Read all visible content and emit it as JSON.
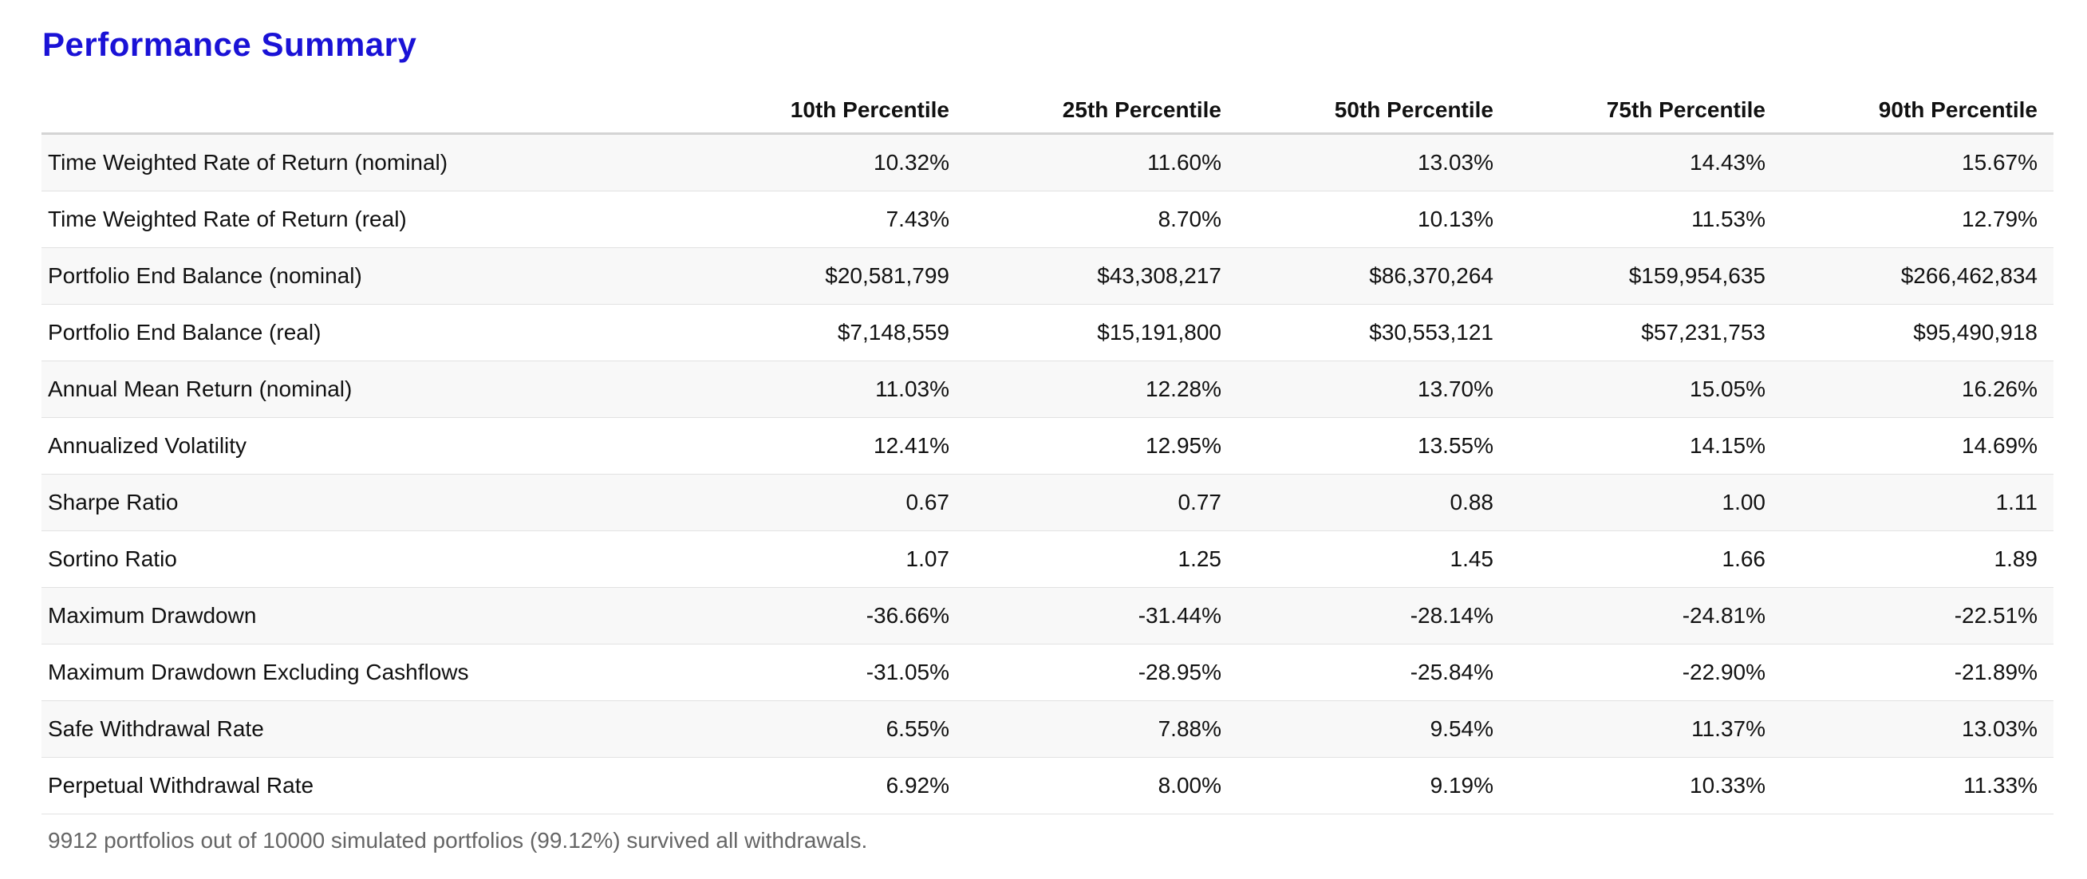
{
  "title": "Performance Summary",
  "table": {
    "columns": [
      "10th Percentile",
      "25th Percentile",
      "50th Percentile",
      "75th Percentile",
      "90th Percentile"
    ],
    "rows": [
      [
        "Time Weighted Rate of Return (nominal)",
        "10.32%",
        "11.60%",
        "13.03%",
        "14.43%",
        "15.67%"
      ],
      [
        "Time Weighted Rate of Return (real)",
        "7.43%",
        "8.70%",
        "10.13%",
        "11.53%",
        "12.79%"
      ],
      [
        "Portfolio End Balance (nominal)",
        "$20,581,799",
        "$43,308,217",
        "$86,370,264",
        "$159,954,635",
        "$266,462,834"
      ],
      [
        "Portfolio End Balance (real)",
        "$7,148,559",
        "$15,191,800",
        "$30,553,121",
        "$57,231,753",
        "$95,490,918"
      ],
      [
        "Annual Mean Return (nominal)",
        "11.03%",
        "12.28%",
        "13.70%",
        "15.05%",
        "16.26%"
      ],
      [
        "Annualized Volatility",
        "12.41%",
        "12.95%",
        "13.55%",
        "14.15%",
        "14.69%"
      ],
      [
        "Sharpe Ratio",
        "0.67",
        "0.77",
        "0.88",
        "1.00",
        "1.11"
      ],
      [
        "Sortino Ratio",
        "1.07",
        "1.25",
        "1.45",
        "1.66",
        "1.89"
      ],
      [
        "Maximum Drawdown",
        "-36.66%",
        "-31.44%",
        "-28.14%",
        "-24.81%",
        "-22.51%"
      ],
      [
        "Maximum Drawdown Excluding Cashflows",
        "-31.05%",
        "-28.95%",
        "-25.84%",
        "-22.90%",
        "-21.89%"
      ],
      [
        "Safe Withdrawal Rate",
        "6.55%",
        "7.88%",
        "9.54%",
        "11.37%",
        "13.03%"
      ],
      [
        "Perpetual Withdrawal Rate",
        "6.92%",
        "8.00%",
        "9.19%",
        "10.33%",
        "11.33%"
      ]
    ]
  },
  "note": "9912 portfolios out of 10000 simulated portfolios (99.12%) survived all withdrawals."
}
